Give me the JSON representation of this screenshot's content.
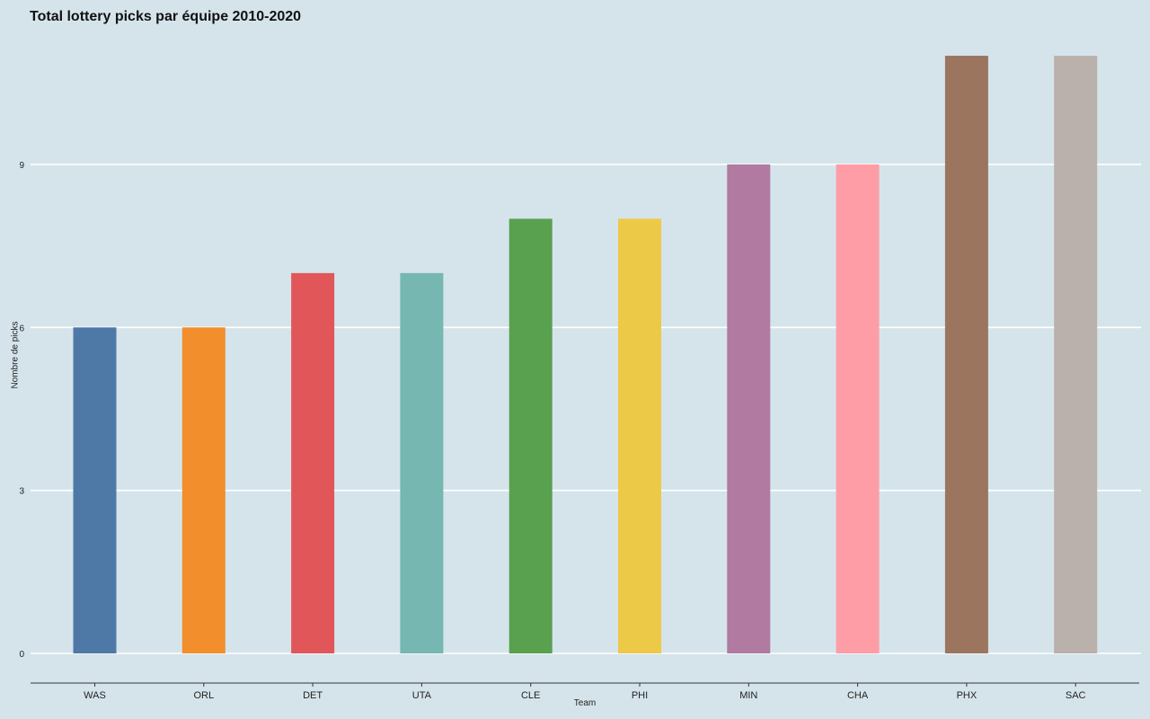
{
  "chart_data": {
    "type": "bar",
    "title": "Total lottery picks par équipe 2010-2020",
    "xlabel": "Team",
    "ylabel": "Nombre de picks",
    "categories": [
      "WAS",
      "ORL",
      "DET",
      "UTA",
      "CLE",
      "PHI",
      "MIN",
      "CHA",
      "PHX",
      "SAC"
    ],
    "values": [
      6,
      6,
      7,
      7,
      8,
      8,
      9,
      9,
      11,
      11
    ],
    "colors": [
      "#4e79a7",
      "#f28e2b",
      "#e15759",
      "#76b7b2",
      "#59a14f",
      "#edc948",
      "#b07aa1",
      "#ff9da7",
      "#9c755f",
      "#bab0ac"
    ],
    "yticks": [
      0,
      3,
      6,
      9
    ],
    "ylim": [
      0,
      11
    ],
    "grid": "horizontal",
    "legend": "none",
    "background_color": "#d5e4eb"
  }
}
